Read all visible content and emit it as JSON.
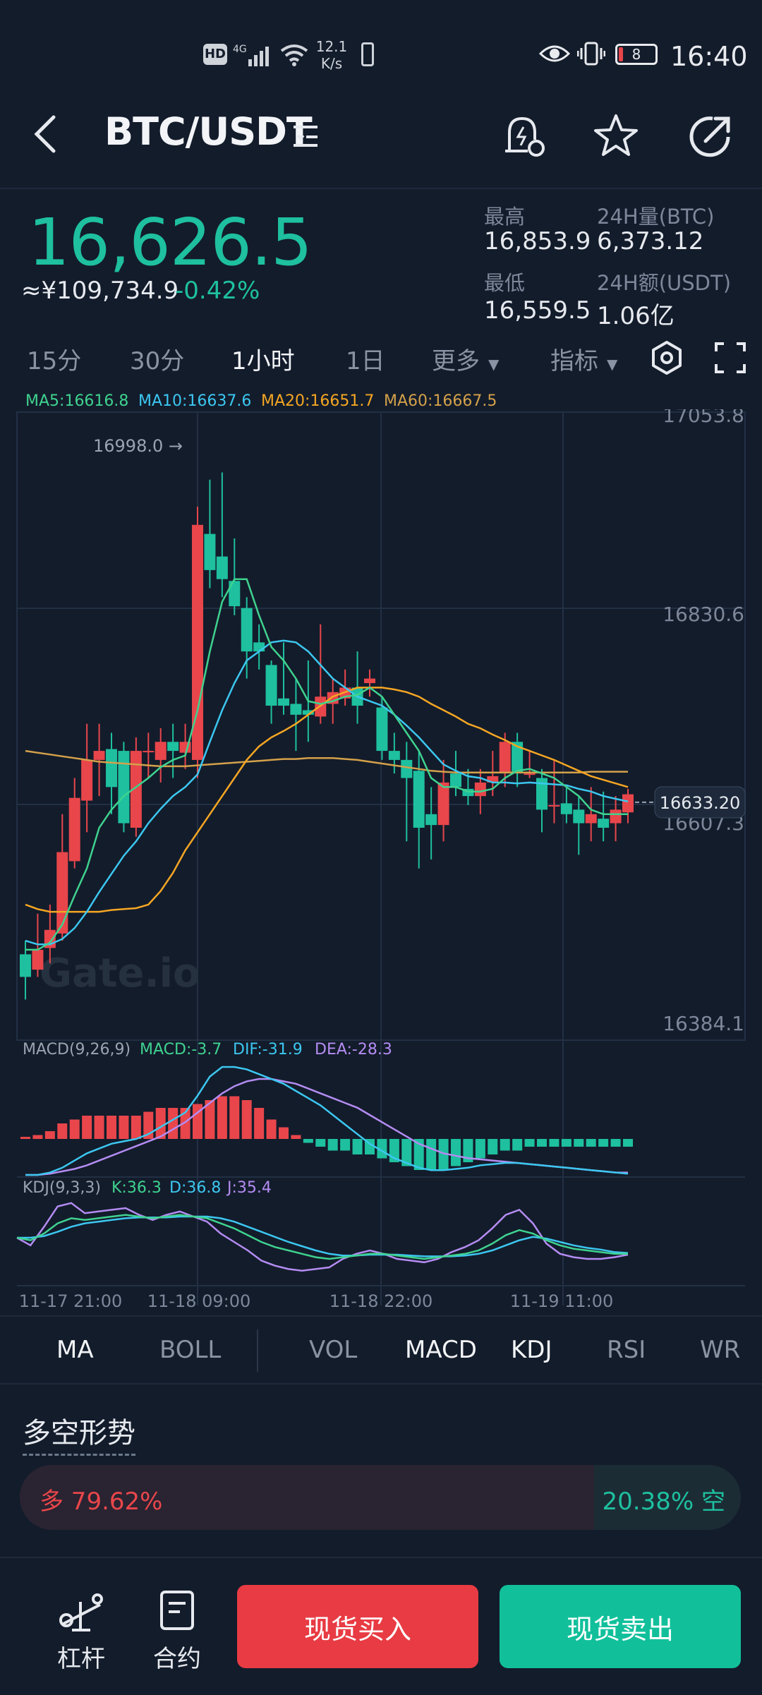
{
  "status_bar": {
    "hd": "HD",
    "net": "4G",
    "speed_value": "12.1",
    "speed_unit": "K/s",
    "battery": "8",
    "time": "16:40"
  },
  "header": {
    "pair": "BTC/USDT",
    "icons": [
      "back-arrow-icon",
      "list-icon",
      "price-alert-icon",
      "star-icon",
      "share-icon"
    ]
  },
  "ticker": {
    "price": "16,626.5",
    "cny": "≈¥109,734.9",
    "change": "-0.42%",
    "high_label": "最高",
    "high": "16,853.9",
    "low_label": "最低",
    "low": "16,559.5",
    "vol_label": "24H量(BTC)",
    "vol": "6,373.12",
    "amt_label": "24H额(USDT)",
    "amt": "1.06亿"
  },
  "timeframes": {
    "items": [
      "15分",
      "30分",
      "1小时",
      "1日"
    ],
    "active": "1小时",
    "more": "更多",
    "indicators": "指标"
  },
  "ma_legend": {
    "ma5": "MA5:16616.8",
    "ma10": "MA10:16637.6",
    "ma20": "MA20:16651.7",
    "ma60": "MA60:16667.5"
  },
  "chart_data": {
    "type": "candlestick",
    "y_labels": [
      "17053.8",
      "16830.6",
      "16607.3",
      "16384.1"
    ],
    "ylim": [
      16384.1,
      17053.8
    ],
    "x_labels": [
      "11-17 21:00",
      "11-18 09:00",
      "11-18 22:00",
      "11-19 11:00"
    ],
    "max_marker": "16998.0",
    "current_price_tag": "16633.20",
    "watermark": "Gate.io",
    "colors": {
      "up": "#e8464b",
      "down": "#1ec09f",
      "ma5": "#3fd28f",
      "ma10": "#3cc7f0",
      "ma20": "#f5a623",
      "ma60": "#d4a14a"
    },
    "candles": [
      [
        16465,
        16440,
        16480,
        16415
      ],
      [
        16448,
        16470,
        16510,
        16440
      ],
      [
        16472,
        16492,
        16520,
        16455
      ],
      [
        16488,
        16578,
        16620,
        16480
      ],
      [
        16568,
        16638,
        16660,
        16560
      ],
      [
        16635,
        16680,
        16720,
        16600
      ],
      [
        16680,
        16690,
        16720,
        16640
      ],
      [
        16692,
        16650,
        16710,
        16620
      ],
      [
        16690,
        16610,
        16700,
        16600
      ],
      [
        16605,
        16690,
        16705,
        16595
      ],
      [
        16690,
        16690,
        16710,
        16660
      ],
      [
        16680,
        16700,
        16715,
        16655
      ],
      [
        16700,
        16690,
        16720,
        16660
      ],
      [
        16688,
        16700,
        16720,
        16670
      ],
      [
        16680,
        16940,
        16960,
        16660
      ],
      [
        16930,
        16890,
        16990,
        16870
      ],
      [
        16905,
        16880,
        16998,
        16860
      ],
      [
        16878,
        16850,
        16925,
        16840
      ],
      [
        16848,
        16800,
        16860,
        16770
      ],
      [
        16810,
        16800,
        16830,
        16780
      ],
      [
        16785,
        16740,
        16790,
        16720
      ],
      [
        16748,
        16740,
        16810,
        16730
      ],
      [
        16742,
        16730,
        16770,
        16690
      ],
      [
        16735,
        16730,
        16790,
        16700
      ],
      [
        16728,
        16750,
        16830,
        16720
      ],
      [
        16742,
        16755,
        16770,
        16720
      ],
      [
        16748,
        16760,
        16780,
        16740
      ],
      [
        16760,
        16740,
        16800,
        16720
      ],
      [
        16765,
        16770,
        16780,
        16750
      ],
      [
        16738,
        16690,
        16750,
        16680
      ],
      [
        16690,
        16680,
        16710,
        16665
      ],
      [
        16680,
        16660,
        16700,
        16590
      ],
      [
        16668,
        16605,
        16690,
        16560
      ],
      [
        16620,
        16608,
        16650,
        16570
      ],
      [
        16608,
        16655,
        16680,
        16590
      ],
      [
        16665,
        16650,
        16690,
        16640
      ],
      [
        16648,
        16640,
        16670,
        16630
      ],
      [
        16640,
        16655,
        16670,
        16620
      ],
      [
        16655,
        16662,
        16690,
        16640
      ],
      [
        16665,
        16700,
        16710,
        16650
      ],
      [
        16700,
        16665,
        16710,
        16650
      ],
      [
        16665,
        16665,
        16690,
        16660
      ],
      [
        16660,
        16625,
        16670,
        16600
      ],
      [
        16630,
        16630,
        16680,
        16610
      ],
      [
        16632,
        16620,
        16650,
        16610
      ],
      [
        16625,
        16610,
        16640,
        16575
      ],
      [
        16610,
        16620,
        16650,
        16590
      ],
      [
        16615,
        16605,
        16645,
        16590
      ],
      [
        16610,
        16625,
        16640,
        16590
      ],
      [
        16622,
        16642,
        16648,
        16610
      ]
    ],
    "ma5": [
      16470,
      16470,
      16478,
      16498,
      16530,
      16560,
      16605,
      16625,
      16640,
      16650,
      16660,
      16672,
      16680,
      16685,
      16735,
      16800,
      16855,
      16880,
      16880,
      16840,
      16805,
      16790,
      16770,
      16745,
      16742,
      16745,
      16750,
      16752,
      16760,
      16750,
      16730,
      16710,
      16690,
      16660,
      16650,
      16650,
      16645,
      16645,
      16648,
      16660,
      16668,
      16670,
      16665,
      16660,
      16650,
      16640,
      16625,
      16620,
      16620,
      16620
    ],
    "ma10": [
      16480,
      16476,
      16476,
      16482,
      16494,
      16512,
      16534,
      16554,
      16574,
      16590,
      16610,
      16626,
      16640,
      16650,
      16664,
      16700,
      16735,
      16765,
      16790,
      16800,
      16810,
      16812,
      16810,
      16800,
      16785,
      16770,
      16760,
      16750,
      16745,
      16740,
      16730,
      16718,
      16705,
      16690,
      16675,
      16668,
      16662,
      16660,
      16655,
      16655,
      16654,
      16655,
      16654,
      16653,
      16652,
      16648,
      16645,
      16640,
      16637,
      16634
    ],
    "ma20": [
      16520,
      16515,
      16512,
      16512,
      16512,
      16512,
      16512,
      16514,
      16515,
      16516,
      16520,
      16535,
      16555,
      16580,
      16600,
      16620,
      16640,
      16660,
      16680,
      16695,
      16705,
      16712,
      16720,
      16730,
      16740,
      16750,
      16755,
      16760,
      16760,
      16760,
      16758,
      16755,
      16750,
      16742,
      16735,
      16728,
      16720,
      16715,
      16708,
      16702,
      16695,
      16690,
      16685,
      16680,
      16674,
      16668,
      16662,
      16658,
      16654,
      16650
    ],
    "ma60": [
      16690,
      16688,
      16686,
      16684,
      16682,
      16680,
      16678,
      16677,
      16676,
      16675,
      16674,
      16673,
      16673,
      16673,
      16674,
      16675,
      16676,
      16677,
      16678,
      16679,
      16680,
      16681,
      16681,
      16682,
      16682,
      16682,
      16681,
      16680,
      16678,
      16676,
      16674,
      16672,
      16670,
      16668,
      16667,
      16666,
      16666,
      16666,
      16666,
      16666,
      16666,
      16666,
      16666,
      16666,
      16666,
      16666,
      16667,
      16667,
      16667,
      16667
    ]
  },
  "macd": {
    "label": "MACD(9,26,9)",
    "macd": "MACD:-3.7",
    "dif": "DIF:-31.9",
    "dea": "DEA:-28.3",
    "hist": [
      0,
      1,
      2,
      4,
      5,
      6,
      6,
      6,
      6,
      6,
      7,
      8,
      8,
      8,
      9,
      10,
      11,
      11,
      10,
      8,
      5,
      3,
      1,
      -1,
      -2,
      -3,
      -3,
      -4,
      -4,
      -5,
      -6,
      -7,
      -8,
      -8,
      -8,
      -7,
      -6,
      -5,
      -4,
      -3,
      -3,
      -2,
      -2,
      -2,
      -2,
      -2,
      -2,
      -2,
      -2,
      -2
    ],
    "dif_line": [
      -30,
      -30,
      -28,
      -24,
      -18,
      -12,
      -8,
      -4,
      -2,
      0,
      4,
      10,
      16,
      22,
      36,
      52,
      60,
      60,
      58,
      54,
      50,
      46,
      40,
      34,
      28,
      20,
      12,
      4,
      -4,
      -10,
      -16,
      -20,
      -24,
      -26,
      -26,
      -25,
      -24,
      -22,
      -21,
      -20,
      -20,
      -21,
      -22,
      -23,
      -24,
      -25,
      -26,
      -27,
      -28,
      -29
    ],
    "dea_line": [
      -30,
      -30,
      -29,
      -27,
      -25,
      -22,
      -18,
      -14,
      -10,
      -6,
      -2,
      2,
      8,
      14,
      22,
      30,
      38,
      44,
      48,
      50,
      50,
      48,
      46,
      42,
      38,
      34,
      30,
      26,
      20,
      14,
      8,
      2,
      -4,
      -8,
      -12,
      -14,
      -16,
      -17,
      -18,
      -19,
      -20,
      -21,
      -22,
      -23,
      -24,
      -25,
      -26,
      -27,
      -28,
      -28
    ]
  },
  "kdj": {
    "label": "KDJ(9,3,3)",
    "k": "K:36.3",
    "d": "D:36.8",
    "j": "J:35.4",
    "k_line": [
      55,
      52,
      60,
      72,
      78,
      76,
      78,
      80,
      82,
      80,
      78,
      80,
      82,
      80,
      78,
      72,
      66,
      58,
      50,
      44,
      40,
      36,
      32,
      30,
      32,
      34,
      36,
      36,
      34,
      32,
      30,
      32,
      34,
      36,
      40,
      48,
      58,
      64,
      60,
      52,
      46,
      42,
      40,
      38,
      36,
      36
    ],
    "d_line": [
      55,
      55,
      57,
      62,
      68,
      72,
      74,
      76,
      78,
      79,
      79,
      79,
      80,
      80,
      80,
      78,
      74,
      68,
      62,
      56,
      50,
      45,
      40,
      36,
      34,
      34,
      35,
      35,
      35,
      34,
      33,
      33,
      33,
      34,
      36,
      40,
      46,
      52,
      56,
      54,
      50,
      46,
      43,
      41,
      38,
      37
    ],
    "j_line": [
      55,
      46,
      68,
      92,
      96,
      84,
      86,
      88,
      90,
      82,
      76,
      82,
      86,
      80,
      74,
      60,
      50,
      40,
      28,
      22,
      18,
      16,
      18,
      20,
      30,
      36,
      40,
      36,
      30,
      28,
      26,
      30,
      38,
      44,
      52,
      66,
      82,
      88,
      72,
      48,
      36,
      32,
      30,
      30,
      32,
      35
    ]
  },
  "indicator_tabs": {
    "items": [
      "MA",
      "BOLL",
      "VOL",
      "MACD",
      "KDJ",
      "RSI",
      "WR"
    ],
    "active": [
      "MA",
      "MACD",
      "KDJ"
    ]
  },
  "long_short": {
    "title": "多空形势",
    "long_label": "多 79.62%",
    "short_label": "20.38% 空",
    "long_pct": 79.62
  },
  "bottom": {
    "leverage": "杠杆",
    "contract": "合约",
    "buy": "现货买入",
    "sell": "现货卖出"
  }
}
